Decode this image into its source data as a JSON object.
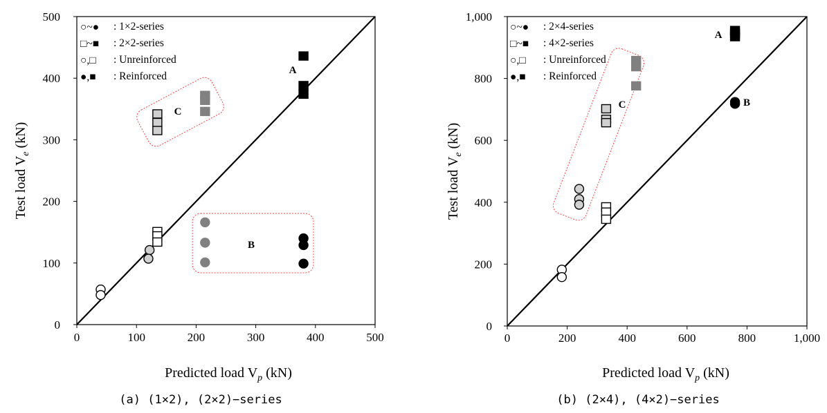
{
  "chart_data": [
    {
      "type": "scatter",
      "caption": "(a) (1×2), (2×2)−series",
      "xlabel": "Predicted load V",
      "xlabel_sub": "p",
      "xlabel_unit": " (kN)",
      "ylabel": "Test load V",
      "ylabel_sub": "e",
      "ylabel_unit": " (kN)",
      "xlim": [
        0,
        500
      ],
      "ylim": [
        0,
        500
      ],
      "xticks": [
        "0",
        "100",
        "200",
        "300",
        "400",
        "500"
      ],
      "yticks": [
        "0",
        "100",
        "200",
        "300",
        "400",
        "500"
      ],
      "grid": false,
      "diagonal": true,
      "legend": [
        {
          "symbols": "○~●",
          "text": ": 1×2-series"
        },
        {
          "symbols": "□~■",
          "text": ": 2×2-series"
        },
        {
          "symbols": "○,□",
          "text": ": Unreinforced"
        },
        {
          "symbols": "●,■",
          "text": ": Reinforced"
        }
      ],
      "annotations": [
        "A",
        "B",
        "C"
      ],
      "series": [
        {
          "marker": "circle",
          "fill": "#ffffff",
          "points": [
            [
              40,
              57
            ],
            [
              40,
              48
            ]
          ]
        },
        {
          "marker": "circle",
          "fill": "#d0d0d0",
          "points": [
            [
              122,
              121
            ],
            [
              120,
              107
            ]
          ]
        },
        {
          "marker": "circle",
          "fill": "#808080",
          "points": [
            [
              215,
              166
            ],
            [
              215,
              133
            ],
            [
              215,
              101
            ]
          ]
        },
        {
          "marker": "circle",
          "fill": "#000000",
          "points": [
            [
              380,
              140
            ],
            [
              380,
              129
            ],
            [
              380,
              99
            ]
          ]
        },
        {
          "marker": "square",
          "fill": "#ffffff",
          "points": [
            [
              135,
              151
            ],
            [
              135,
              144
            ],
            [
              135,
              134
            ]
          ]
        },
        {
          "marker": "square",
          "fill": "#d0d0d0",
          "points": [
            [
              135,
              342
            ],
            [
              135,
              328
            ],
            [
              135,
              315
            ]
          ]
        },
        {
          "marker": "square",
          "fill": "#808080",
          "points": [
            [
              215,
              372
            ],
            [
              215,
              364
            ],
            [
              215,
              346
            ]
          ]
        },
        {
          "marker": "square",
          "fill": "#000000",
          "points": [
            [
              380,
              436
            ],
            [
              380,
              388
            ],
            [
              380,
              374
            ]
          ]
        }
      ]
    },
    {
      "type": "scatter",
      "caption": "(b) (2×4), (4×2)−series",
      "xlabel": "Predicted load V",
      "xlabel_sub": "p",
      "xlabel_unit": " (kN)",
      "ylabel": "Test load V",
      "ylabel_sub": "e",
      "ylabel_unit": " (kN)",
      "xlim": [
        0,
        1000
      ],
      "ylim": [
        0,
        1000
      ],
      "xticks": [
        "0",
        "200",
        "400",
        "600",
        "800",
        "1,000"
      ],
      "yticks": [
        "0",
        "200",
        "400",
        "600",
        "800",
        "1,000"
      ],
      "grid": false,
      "diagonal": true,
      "legend": [
        {
          "symbols": "○~●",
          "text": ": 2×4-series"
        },
        {
          "symbols": "□~■",
          "text": ": 4×2-series"
        },
        {
          "symbols": "○,□",
          "text": ": Unreinforced"
        },
        {
          "symbols": "●,■",
          "text": ": Reinforced"
        }
      ],
      "annotations": [
        "A",
        "B",
        "C"
      ],
      "series": [
        {
          "marker": "circle",
          "fill": "#ffffff",
          "points": [
            [
              182,
              182
            ],
            [
              182,
              158
            ]
          ]
        },
        {
          "marker": "circle",
          "fill": "#d0d0d0",
          "points": [
            [
              240,
              443
            ],
            [
              240,
              410
            ],
            [
              240,
              392
            ]
          ]
        },
        {
          "marker": "circle",
          "fill": "#000000",
          "points": [
            [
              760,
              724
            ],
            [
              760,
              718
            ]
          ]
        },
        {
          "marker": "square",
          "fill": "#ffffff",
          "points": [
            [
              330,
              385
            ],
            [
              330,
              368
            ],
            [
              330,
              345
            ]
          ]
        },
        {
          "marker": "square",
          "fill": "#d0d0d0",
          "points": [
            [
              330,
              702
            ],
            [
              330,
              668
            ],
            [
              330,
              657
            ]
          ]
        },
        {
          "marker": "square",
          "fill": "#808080",
          "points": [
            [
              430,
              858
            ],
            [
              430,
              838
            ],
            [
              430,
              776
            ]
          ]
        },
        {
          "marker": "square",
          "fill": "#000000",
          "points": [
            [
              760,
              955
            ],
            [
              760,
              945
            ],
            [
              760,
              935
            ]
          ]
        }
      ]
    }
  ]
}
